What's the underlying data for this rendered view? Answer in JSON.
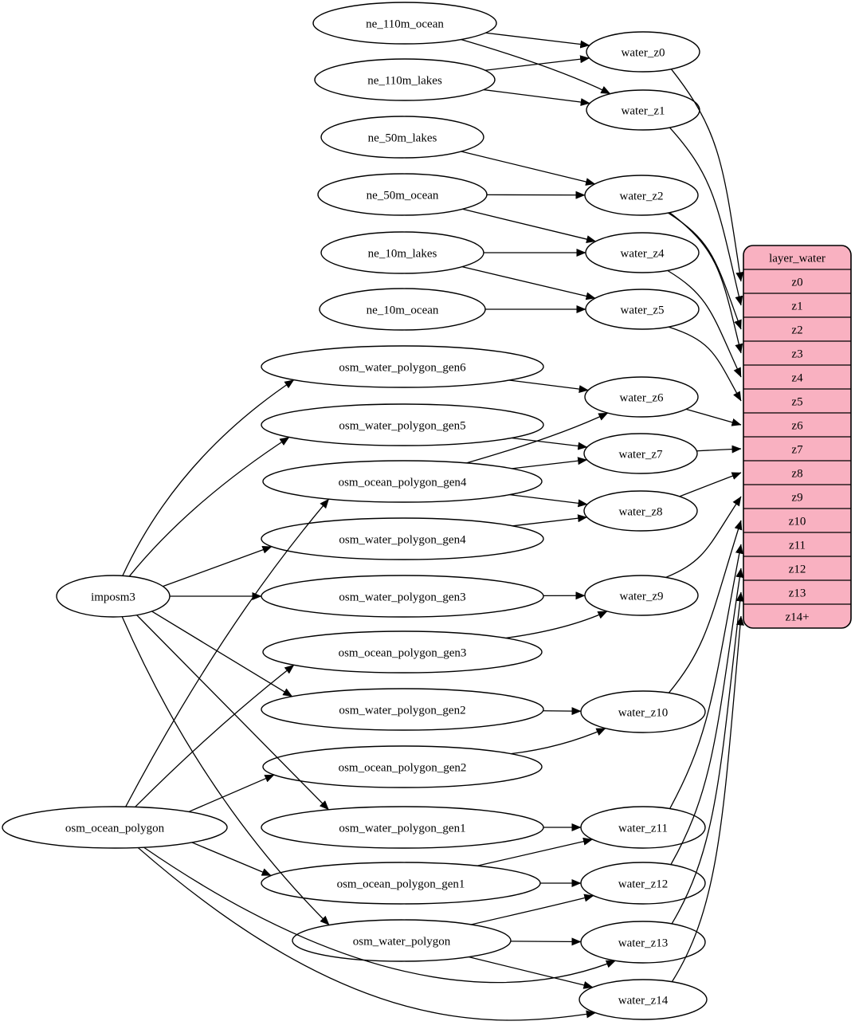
{
  "diagram": {
    "kind": "graphviz-etl-dependency-graph",
    "colors": {
      "background": "#ffffff",
      "node_fill": "#ffffff",
      "node_stroke": "#000000",
      "edge_stroke": "#000000",
      "table_fill": "#f9b1c1",
      "table_stroke": "#000000",
      "text": "#000000"
    },
    "nodes": [
      {
        "id": "ne_110m_ocean",
        "label": "ne_110m_ocean"
      },
      {
        "id": "ne_110m_lakes",
        "label": "ne_110m_lakes"
      },
      {
        "id": "ne_50m_lakes",
        "label": "ne_50m_lakes"
      },
      {
        "id": "ne_50m_ocean",
        "label": "ne_50m_ocean"
      },
      {
        "id": "ne_10m_lakes",
        "label": "ne_10m_lakes"
      },
      {
        "id": "ne_10m_ocean",
        "label": "ne_10m_ocean"
      },
      {
        "id": "imposm3",
        "label": "imposm3"
      },
      {
        "id": "osm_ocean_polygon",
        "label": "osm_ocean_polygon"
      },
      {
        "id": "osm_water_polygon_gen6",
        "label": "osm_water_polygon_gen6"
      },
      {
        "id": "osm_water_polygon_gen5",
        "label": "osm_water_polygon_gen5"
      },
      {
        "id": "osm_ocean_polygon_gen4",
        "label": "osm_ocean_polygon_gen4"
      },
      {
        "id": "osm_water_polygon_gen4",
        "label": "osm_water_polygon_gen4"
      },
      {
        "id": "osm_water_polygon_gen3",
        "label": "osm_water_polygon_gen3"
      },
      {
        "id": "osm_ocean_polygon_gen3",
        "label": "osm_ocean_polygon_gen3"
      },
      {
        "id": "osm_water_polygon_gen2",
        "label": "osm_water_polygon_gen2"
      },
      {
        "id": "osm_ocean_polygon_gen2",
        "label": "osm_ocean_polygon_gen2"
      },
      {
        "id": "osm_water_polygon_gen1",
        "label": "osm_water_polygon_gen1"
      },
      {
        "id": "osm_ocean_polygon_gen1",
        "label": "osm_ocean_polygon_gen1"
      },
      {
        "id": "osm_water_polygon",
        "label": "osm_water_polygon"
      },
      {
        "id": "water_z0",
        "label": "water_z0"
      },
      {
        "id": "water_z1",
        "label": "water_z1"
      },
      {
        "id": "water_z2",
        "label": "water_z2"
      },
      {
        "id": "water_z4",
        "label": "water_z4"
      },
      {
        "id": "water_z5",
        "label": "water_z5"
      },
      {
        "id": "water_z6",
        "label": "water_z6"
      },
      {
        "id": "water_z7",
        "label": "water_z7"
      },
      {
        "id": "water_z8",
        "label": "water_z8"
      },
      {
        "id": "water_z9",
        "label": "water_z9"
      },
      {
        "id": "water_z10",
        "label": "water_z10"
      },
      {
        "id": "water_z11",
        "label": "water_z11"
      },
      {
        "id": "water_z12",
        "label": "water_z12"
      },
      {
        "id": "water_z13",
        "label": "water_z13"
      },
      {
        "id": "water_z14",
        "label": "water_z14"
      }
    ],
    "table": {
      "title": "layer_water",
      "rows": [
        "z0",
        "z1",
        "z2",
        "z3",
        "z4",
        "z5",
        "z6",
        "z7",
        "z8",
        "z9",
        "z10",
        "z11",
        "z12",
        "z13",
        "z14+"
      ]
    },
    "edges": [
      [
        "ne_110m_ocean",
        "water_z0"
      ],
      [
        "ne_110m_ocean",
        "water_z1"
      ],
      [
        "ne_110m_lakes",
        "water_z0"
      ],
      [
        "ne_110m_lakes",
        "water_z1"
      ],
      [
        "ne_50m_lakes",
        "water_z2"
      ],
      [
        "ne_50m_ocean",
        "water_z2"
      ],
      [
        "ne_50m_ocean",
        "water_z4"
      ],
      [
        "ne_10m_lakes",
        "water_z4"
      ],
      [
        "ne_10m_lakes",
        "water_z5"
      ],
      [
        "ne_10m_ocean",
        "water_z5"
      ],
      [
        "imposm3",
        "osm_water_polygon_gen6"
      ],
      [
        "imposm3",
        "osm_water_polygon_gen5"
      ],
      [
        "imposm3",
        "osm_water_polygon_gen4"
      ],
      [
        "imposm3",
        "osm_water_polygon_gen3"
      ],
      [
        "imposm3",
        "osm_water_polygon_gen2"
      ],
      [
        "imposm3",
        "osm_water_polygon_gen1"
      ],
      [
        "imposm3",
        "osm_water_polygon"
      ],
      [
        "osm_ocean_polygon",
        "osm_ocean_polygon_gen4"
      ],
      [
        "osm_ocean_polygon",
        "osm_ocean_polygon_gen3"
      ],
      [
        "osm_ocean_polygon",
        "osm_ocean_polygon_gen2"
      ],
      [
        "osm_ocean_polygon",
        "osm_ocean_polygon_gen1"
      ],
      [
        "osm_ocean_polygon",
        "water_z13"
      ],
      [
        "osm_ocean_polygon",
        "water_z14"
      ],
      [
        "osm_water_polygon_gen6",
        "water_z6"
      ],
      [
        "osm_water_polygon_gen5",
        "water_z7"
      ],
      [
        "osm_ocean_polygon_gen4",
        "water_z6"
      ],
      [
        "osm_ocean_polygon_gen4",
        "water_z7"
      ],
      [
        "osm_ocean_polygon_gen4",
        "water_z8"
      ],
      [
        "osm_water_polygon_gen4",
        "water_z8"
      ],
      [
        "osm_water_polygon_gen3",
        "water_z9"
      ],
      [
        "osm_ocean_polygon_gen3",
        "water_z9"
      ],
      [
        "osm_water_polygon_gen2",
        "water_z10"
      ],
      [
        "osm_ocean_polygon_gen2",
        "water_z10"
      ],
      [
        "osm_water_polygon_gen1",
        "water_z11"
      ],
      [
        "osm_ocean_polygon_gen1",
        "water_z11"
      ],
      [
        "osm_ocean_polygon_gen1",
        "water_z12"
      ],
      [
        "osm_water_polygon",
        "water_z12"
      ],
      [
        "osm_water_polygon",
        "water_z13"
      ],
      [
        "osm_water_polygon",
        "water_z14"
      ]
    ],
    "row_edges": [
      [
        "water_z0",
        "z0"
      ],
      [
        "water_z1",
        "z1"
      ],
      [
        "water_z2",
        "z2"
      ],
      [
        "water_z2",
        "z3"
      ],
      [
        "water_z4",
        "z4"
      ],
      [
        "water_z5",
        "z5"
      ],
      [
        "water_z6",
        "z6"
      ],
      [
        "water_z7",
        "z7"
      ],
      [
        "water_z8",
        "z8"
      ],
      [
        "water_z9",
        "z9"
      ],
      [
        "water_z10",
        "z10"
      ],
      [
        "water_z11",
        "z11"
      ],
      [
        "water_z12",
        "z12"
      ],
      [
        "water_z13",
        "z13"
      ],
      [
        "water_z14",
        "z14+"
      ]
    ]
  }
}
